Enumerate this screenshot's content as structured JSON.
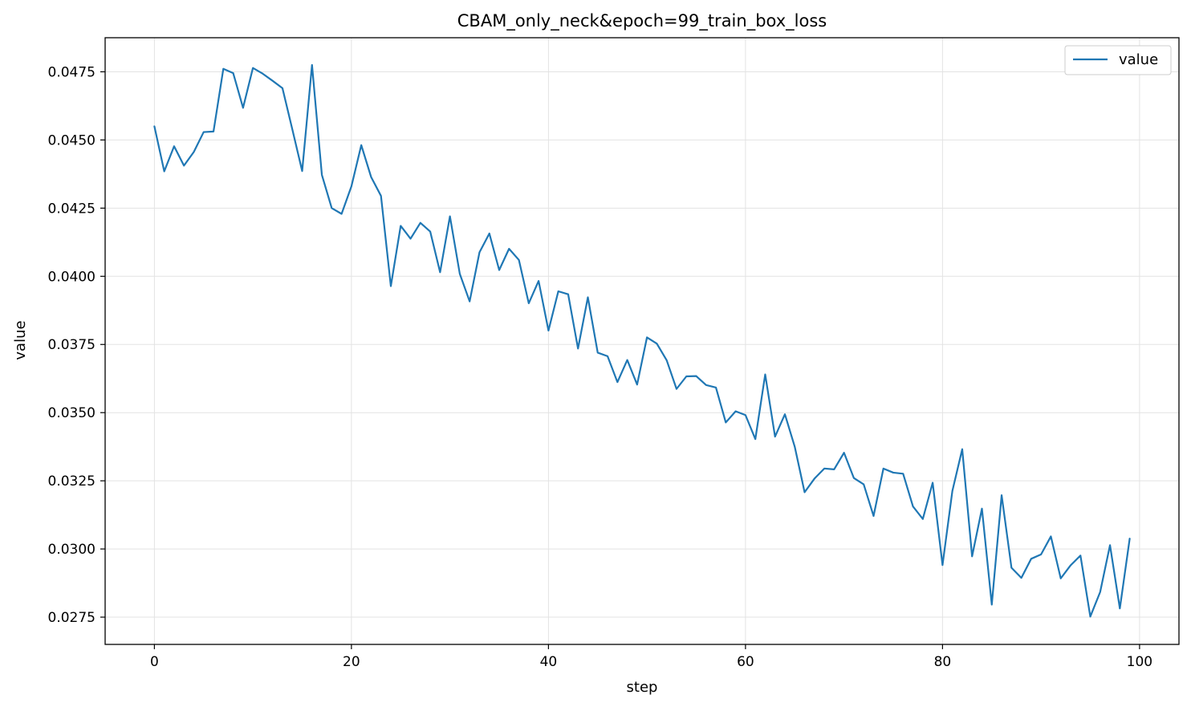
{
  "chart_data": {
    "type": "line",
    "title": "CBAM_only_neck&epoch=99_train_box_loss",
    "xlabel": "step",
    "ylabel": "value",
    "xlim": [
      -5,
      104
    ],
    "ylim": [
      0.0265,
      0.04875
    ],
    "xticks": [
      0,
      20,
      40,
      60,
      80,
      100
    ],
    "yticks": [
      0.0275,
      0.03,
      0.0325,
      0.035,
      0.0375,
      0.04,
      0.0425,
      0.045,
      0.0475
    ],
    "ytick_labels": [
      "0.0275",
      "0.0300",
      "0.0325",
      "0.0350",
      "0.0375",
      "0.0400",
      "0.0425",
      "0.0450",
      "0.0475"
    ],
    "grid": true,
    "legend_position": "top-right",
    "line_color": "#1f77b4",
    "series": [
      {
        "name": "value",
        "x": [
          0,
          1,
          2,
          3,
          4,
          5,
          6,
          7,
          8,
          9,
          10,
          11,
          12,
          13,
          14,
          15,
          16,
          17,
          18,
          19,
          20,
          21,
          22,
          23,
          24,
          25,
          26,
          27,
          28,
          29,
          30,
          31,
          32,
          33,
          34,
          35,
          36,
          37,
          38,
          39,
          40,
          41,
          42,
          43,
          44,
          45,
          46,
          47,
          48,
          49,
          50,
          51,
          52,
          53,
          54,
          55,
          56,
          57,
          58,
          59,
          60,
          61,
          62,
          63,
          64,
          65,
          66,
          67,
          68,
          69,
          70,
          71,
          72,
          73,
          74,
          75,
          76,
          77,
          78,
          79,
          80,
          81,
          82,
          83,
          84,
          85,
          86,
          87,
          88,
          89,
          90,
          91,
          92,
          93,
          94,
          95,
          96,
          97,
          98,
          99
        ],
        "y": [
          0.0455,
          0.04385,
          0.04477,
          0.04406,
          0.04456,
          0.04529,
          0.04531,
          0.04761,
          0.04745,
          0.04618,
          0.04764,
          0.04743,
          0.04717,
          0.0469,
          0.04539,
          0.04386,
          0.04775,
          0.04372,
          0.0425,
          0.04229,
          0.0433,
          0.04481,
          0.04364,
          0.04295,
          0.03964,
          0.04185,
          0.04138,
          0.04196,
          0.04164,
          0.04015,
          0.0422,
          0.04009,
          0.03908,
          0.04088,
          0.04157,
          0.04023,
          0.04101,
          0.0406,
          0.03901,
          0.03983,
          0.03801,
          0.03945,
          0.03934,
          0.03735,
          0.03923,
          0.0372,
          0.03707,
          0.03612,
          0.03693,
          0.03603,
          0.03776,
          0.03753,
          0.03692,
          0.03587,
          0.03633,
          0.03634,
          0.03601,
          0.03592,
          0.03464,
          0.03505,
          0.03491,
          0.03403,
          0.0364,
          0.03412,
          0.03494,
          0.03375,
          0.03208,
          0.03258,
          0.03295,
          0.03292,
          0.03353,
          0.0326,
          0.03237,
          0.03121,
          0.03295,
          0.0328,
          0.03276,
          0.03156,
          0.0311,
          0.03243,
          0.02941,
          0.03213,
          0.03366,
          0.02973,
          0.03148,
          0.02796,
          0.03197,
          0.02931,
          0.02894,
          0.02964,
          0.0298,
          0.03046,
          0.02892,
          0.0294,
          0.02976,
          0.02752,
          0.02842,
          0.03014,
          0.02782,
          0.03038
        ]
      }
    ]
  }
}
